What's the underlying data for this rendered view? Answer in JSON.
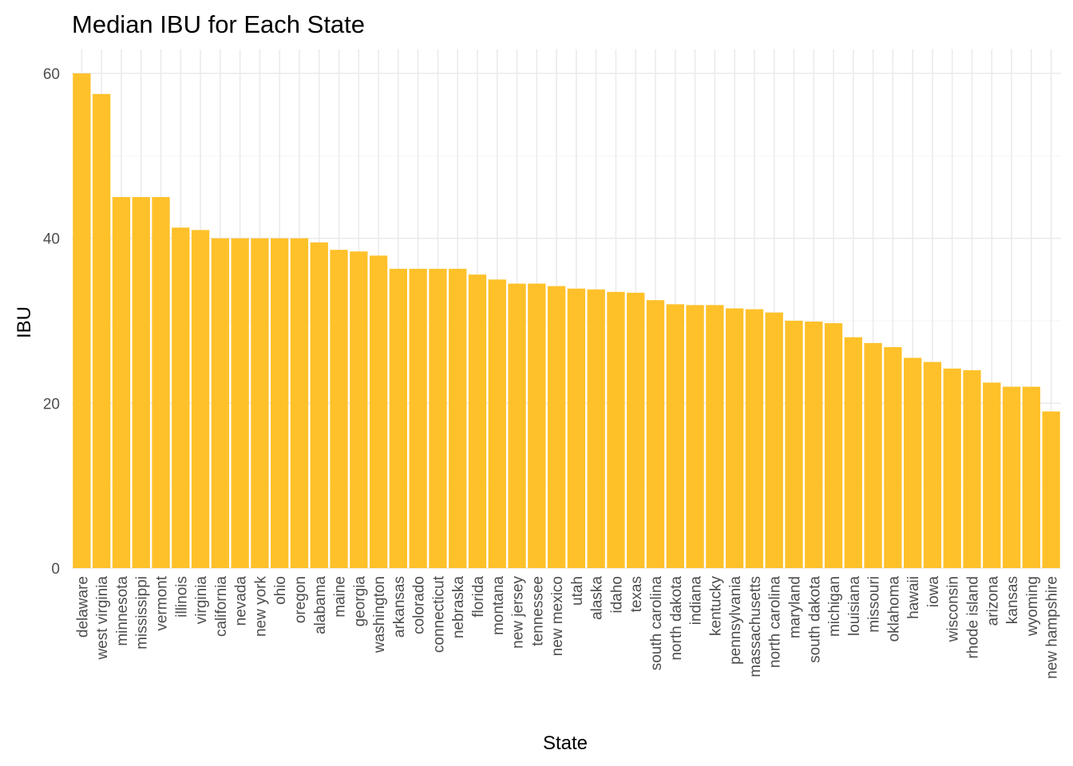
{
  "chart_data": {
    "type": "bar",
    "title": "Median IBU for Each State",
    "xlabel": "State",
    "ylabel": "IBU",
    "ylim": [
      0,
      62.9
    ],
    "y_ticks": [
      0,
      20,
      40,
      60
    ],
    "y_minor_ticks": [
      10,
      30,
      50
    ],
    "grid": true,
    "bar_color": "#FFC12A",
    "categories": [
      "delaware",
      "west virginia",
      "minnesota",
      "mississippi",
      "vermont",
      "illinois",
      "virginia",
      "california",
      "nevada",
      "new york",
      "ohio",
      "oregon",
      "alabama",
      "maine",
      "georgia",
      "washington",
      "arkansas",
      "colorado",
      "connecticut",
      "nebraska",
      "florida",
      "montana",
      "new jersey",
      "tennessee",
      "new mexico",
      "utah",
      "alaska",
      "idaho",
      "texas",
      "south carolina",
      "north dakota",
      "indiana",
      "kentucky",
      "pennsylvania",
      "massachusetts",
      "north carolina",
      "maryland",
      "south dakota",
      "michigan",
      "louisiana",
      "missouri",
      "oklahoma",
      "hawaii",
      "iowa",
      "wisconsin",
      "rhode island",
      "arizona",
      "kansas",
      "wyoming",
      "new hampshire"
    ],
    "values": [
      60,
      57.5,
      45,
      45,
      45,
      41.3,
      41,
      40,
      40,
      40,
      40,
      40,
      39.5,
      38.6,
      38.4,
      37.9,
      36.3,
      36.3,
      36.3,
      36.3,
      35.6,
      35,
      34.5,
      34.5,
      34.2,
      33.9,
      33.8,
      33.5,
      33.4,
      32.5,
      32,
      31.9,
      31.9,
      31.5,
      31.4,
      31,
      30,
      29.9,
      29.7,
      28,
      27.3,
      26.8,
      25.5,
      25,
      24.2,
      24,
      22.5,
      22,
      22,
      19
    ]
  }
}
